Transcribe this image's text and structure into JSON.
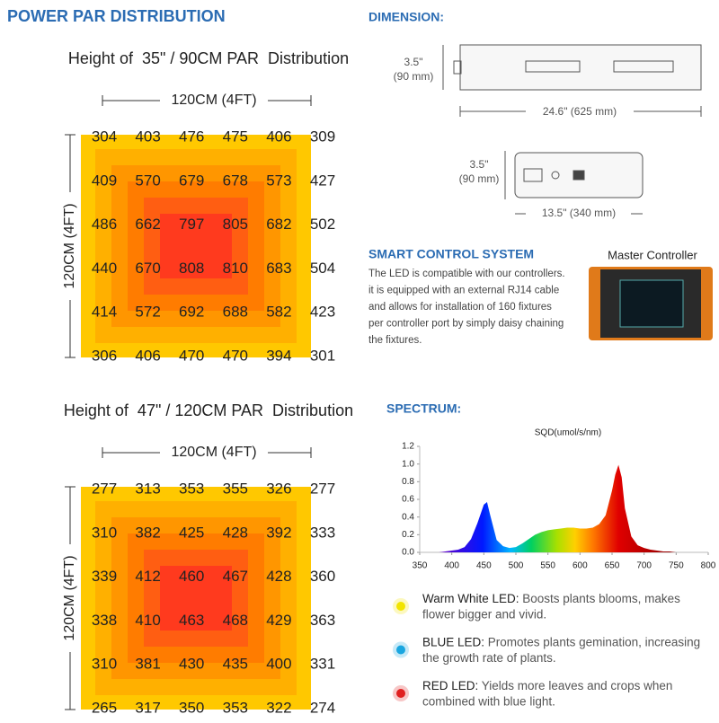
{
  "left": {
    "title": "POWER PAR DISTRIBUTION",
    "maps": [
      {
        "heading": "Height of  35\" / 90CM PAR  Distribution",
        "width_label": "120CM (4FT)",
        "depth_label": "120CM (4FT)",
        "rows": [
          [
            304,
            403,
            476,
            475,
            406,
            309
          ],
          [
            409,
            570,
            679,
            678,
            573,
            427
          ],
          [
            486,
            662,
            797,
            805,
            682,
            502
          ],
          [
            440,
            670,
            808,
            810,
            683,
            504
          ],
          [
            414,
            572,
            692,
            688,
            582,
            423
          ],
          [
            306,
            406,
            470,
            470,
            394,
            301
          ]
        ]
      },
      {
        "heading": "Height of  47\" / 120CM PAR  Distribution",
        "width_label": "120CM (4FT)",
        "depth_label": "120CM (4FT)",
        "rows": [
          [
            277,
            313,
            353,
            355,
            326,
            277
          ],
          [
            310,
            382,
            425,
            428,
            392,
            333
          ],
          [
            339,
            412,
            460,
            467,
            428,
            360
          ],
          [
            338,
            410,
            463,
            468,
            429,
            363
          ],
          [
            310,
            381,
            430,
            435,
            400,
            331
          ],
          [
            265,
            317,
            350,
            353,
            322,
            274
          ]
        ]
      }
    ]
  },
  "dimension": {
    "title": "DIMENSION:",
    "side": {
      "height": "3.5\"",
      "height_mm": "(90 mm)",
      "length": "24.6\" (625 mm)"
    },
    "end": {
      "height": "3.5\"",
      "height_mm": "(90 mm)",
      "width": "13.5\" (340 mm)"
    }
  },
  "smart_control": {
    "title": "SMART CONTROL SYSTEM",
    "lines": [
      "The LED is compatible with our controllers.",
      "it is equipped with an external RJ14 cable",
      "and allows for installation of 160 fixtures",
      "per controller port by simply daisy chaining",
      "the fixtures."
    ],
    "device_label": "Master Controller"
  },
  "spectrum": {
    "title": "SPECTRUM:",
    "legend": [
      {
        "label": "Warm White LED:",
        "lines": [
          " Boosts plants blooms, makes",
          "flower bigger and vivid."
        ],
        "color": "#f2e400"
      },
      {
        "label": "BLUE LED:",
        "lines": [
          " Promotes plants gemination, increasing",
          "the growth rate of plants."
        ],
        "color": "#1aa6e0"
      },
      {
        "label": "RED LED:",
        "lines": [
          " Yields more leaves and crops when",
          "combined with blue light."
        ],
        "color": "#e02020"
      }
    ]
  },
  "chart_data": {
    "type": "area",
    "title": "SQD(umol/s/nm)",
    "x": [
      380,
      390,
      400,
      410,
      420,
      430,
      440,
      450,
      455,
      460,
      470,
      480,
      490,
      500,
      510,
      520,
      530,
      540,
      550,
      560,
      570,
      580,
      590,
      600,
      610,
      620,
      630,
      640,
      650,
      655,
      660,
      665,
      670,
      680,
      690,
      700,
      710,
      720,
      730,
      740,
      750,
      760,
      770,
      780
    ],
    "values": [
      0,
      0.01,
      0.02,
      0.03,
      0.06,
      0.15,
      0.33,
      0.54,
      0.57,
      0.42,
      0.14,
      0.07,
      0.05,
      0.06,
      0.1,
      0.15,
      0.2,
      0.23,
      0.25,
      0.26,
      0.27,
      0.28,
      0.28,
      0.27,
      0.27,
      0.28,
      0.32,
      0.42,
      0.7,
      0.88,
      0.99,
      0.85,
      0.5,
      0.18,
      0.08,
      0.05,
      0.03,
      0.02,
      0.01,
      0.01,
      0,
      0,
      0,
      0
    ],
    "xlim": [
      350,
      800
    ],
    "xticks": [
      350,
      400,
      450,
      500,
      550,
      600,
      650,
      700,
      750,
      800
    ],
    "ylim": [
      0,
      1.2
    ],
    "yticks": [
      {
        "value": 0,
        "label": "0.0"
      },
      0.2,
      0.4,
      0.6,
      0.8,
      {
        "value": 1,
        "label": "1.0"
      },
      1.2
    ]
  }
}
